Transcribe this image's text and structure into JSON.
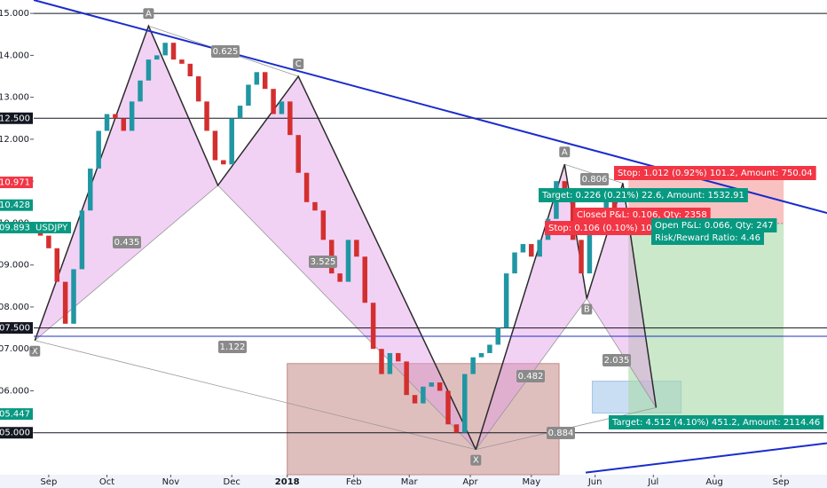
{
  "chart_data": {
    "type": "candlestick",
    "symbol": "USDJPY",
    "up_color": "#2196a3",
    "down_color": "#d32f2f",
    "ylim": [
      104.0,
      115.32
    ],
    "yticks": [
      {
        "value": 115,
        "label": "115.000"
      },
      {
        "value": 114,
        "label": "114.000"
      },
      {
        "value": 113,
        "label": "113.000"
      },
      {
        "value": 112,
        "label": "112.000"
      },
      {
        "value": 111,
        "label": "111.000"
      },
      {
        "value": 110,
        "label": "110.000"
      },
      {
        "value": 109,
        "label": "109.000"
      },
      {
        "value": 108,
        "label": "108.000"
      },
      {
        "value": 107,
        "label": "107.000"
      },
      {
        "value": 106,
        "label": "106.000"
      },
      {
        "value": 105,
        "label": "105.000"
      }
    ],
    "xlim": [
      -5.4,
      280.6
    ],
    "xticks": [
      {
        "value": 0,
        "label": "Sep"
      },
      {
        "value": 21,
        "label": "Oct"
      },
      {
        "value": 44,
        "label": "Nov"
      },
      {
        "value": 66,
        "label": "Dec"
      },
      {
        "value": 86,
        "label": "2018"
      },
      {
        "value": 110,
        "label": "Feb"
      },
      {
        "value": 130,
        "label": "Mar"
      },
      {
        "value": 152,
        "label": "Apr"
      },
      {
        "value": 174,
        "label": "May"
      },
      {
        "value": 197,
        "label": "Jun"
      },
      {
        "value": 218,
        "label": "Jul"
      },
      {
        "value": 240,
        "label": "Aug"
      },
      {
        "value": 264,
        "label": "Sep"
      }
    ],
    "x": [
      -3,
      0,
      3,
      6,
      9,
      12,
      15,
      18,
      21,
      24,
      27,
      30,
      33,
      36,
      39,
      42,
      45,
      48,
      51,
      54,
      57,
      60,
      63,
      66,
      69,
      72,
      75,
      78,
      81,
      84,
      87,
      90,
      93,
      96,
      99,
      102,
      105,
      108,
      111,
      114,
      117,
      120,
      123,
      126,
      129,
      132,
      135,
      138,
      141,
      144,
      147,
      150,
      153,
      156,
      159,
      162,
      165,
      168,
      171,
      174,
      177,
      180,
      183,
      186,
      189,
      192,
      195,
      198,
      201,
      204,
      207
    ],
    "open": [
      109.9,
      109.7,
      109.4,
      108.6,
      107.6,
      108.9,
      110.3,
      111.3,
      112.2,
      112.6,
      112.5,
      112.2,
      112.9,
      113.4,
      113.9,
      114.0,
      114.3,
      113.9,
      113.8,
      113.5,
      112.9,
      112.2,
      111.5,
      111.4,
      112.5,
      112.8,
      113.3,
      113.6,
      113.2,
      112.6,
      112.9,
      112.1,
      111.2,
      110.5,
      110.3,
      109.6,
      108.8,
      108.6,
      109.6,
      109.2,
      108.1,
      107.0,
      106.4,
      106.9,
      106.7,
      105.9,
      105.7,
      106.1,
      106.2,
      106.0,
      105.2,
      105.0,
      106.4,
      106.8,
      106.9,
      107.1,
      107.5,
      108.8,
      109.3,
      109.5,
      109.2,
      109.6,
      110.1,
      111.0,
      110.8,
      109.6,
      108.8,
      109.8,
      110.0,
      110.5,
      110.3
    ],
    "close": [
      109.7,
      109.4,
      108.6,
      107.6,
      108.9,
      110.3,
      111.3,
      112.2,
      112.6,
      112.5,
      112.2,
      112.9,
      113.4,
      113.9,
      114.0,
      114.3,
      113.9,
      113.8,
      113.5,
      112.9,
      112.2,
      111.5,
      111.4,
      112.5,
      112.8,
      113.3,
      113.6,
      113.2,
      112.6,
      112.9,
      112.1,
      111.2,
      110.5,
      110.3,
      109.6,
      108.8,
      108.6,
      109.6,
      109.2,
      108.1,
      107.0,
      106.4,
      106.9,
      106.7,
      105.9,
      105.7,
      106.1,
      106.2,
      106.0,
      105.2,
      105.0,
      106.4,
      106.8,
      106.9,
      107.1,
      107.5,
      108.8,
      109.3,
      109.5,
      109.2,
      109.6,
      110.1,
      111.0,
      110.8,
      109.6,
      108.8,
      109.8,
      110.0,
      110.5,
      110.3,
      109.9
    ],
    "levels": [
      115,
      112.5,
      107.5,
      105
    ],
    "blue_level": 107.3,
    "trendlines": [
      {
        "x": [
          -5.4,
          280.6
        ],
        "y": [
          115.32,
          110.24
        ]
      },
      {
        "x": [
          193.6,
          280.6
        ],
        "y": [
          104.05,
          104.75
        ]
      }
    ],
    "patterns": [
      {
        "x": [
          -5,
          36,
          61,
          90,
          154
        ],
        "y": [
          107.2,
          114.7,
          110.9,
          113.5,
          104.6
        ],
        "labels": [
          "X",
          "A",
          null,
          "C",
          null
        ]
      },
      {
        "x": [
          154,
          186,
          194,
          207,
          219
        ],
        "y": [
          104.6,
          111.4,
          108.2,
          110.95,
          105.6
        ],
        "labels": [
          "X",
          "A",
          "B",
          null,
          null
        ]
      }
    ],
    "ratios": [
      "0.625",
      "0.435",
      "3.525",
      "1.122",
      "0.806",
      "0.482",
      "2.035",
      "0.884"
    ],
    "zones": [
      {
        "x": [
          86,
          184
        ],
        "y": [
          106.65,
          104.0
        ],
        "color": "#c48a86"
      },
      {
        "x": [
          196,
          228
        ],
        "y": [
          106.23,
          105.47
        ],
        "color": "#9ec3ea"
      }
    ],
    "trade": {
      "x": [
        209,
        265
      ],
      "entry": 109.99,
      "stop": 111.09,
      "target": 105.28
    },
    "trade_labels": [
      {
        "text": "Stop: 1.012 (0.92%) 101.2, Amount: 750.04",
        "color": "#f23645"
      },
      {
        "text": "Target: 0.226 (0.21%) 22.6, Amount: 1532.91",
        "color": "#089981"
      },
      {
        "text": "Closed P&L: 0.106, Qty: 2358",
        "color": "#f23645"
      },
      {
        "text": "Stop: 0.106 (0.10%) 10.6",
        "color": "#f23645"
      },
      {
        "text": "Open P&L: 0.066, Qty: 247",
        "color": "#089981"
      },
      {
        "text": "Risk/Reward Ratio: 4.46",
        "color": "#089981"
      },
      {
        "text": "Target: 4.512 (4.10%) 451.2, Amount: 2114.46",
        "color": "#089981"
      }
    ],
    "price_tags": [
      {
        "value": 112.5,
        "label": "112.500",
        "color": "#131722"
      },
      {
        "value": 110.971,
        "label": "110.971",
        "color": "#f23645"
      },
      {
        "value": 110.428,
        "label": "110.428",
        "color": "#089981"
      },
      {
        "value": 109.893,
        "label": "109.893",
        "color": "#089981"
      },
      {
        "value": 107.5,
        "label": "107.500",
        "color": "#131722"
      },
      {
        "value": 105.447,
        "label": "105.447",
        "color": "#089981"
      },
      {
        "value": 105,
        "label": "105.000",
        "color": "#131722"
      }
    ]
  }
}
